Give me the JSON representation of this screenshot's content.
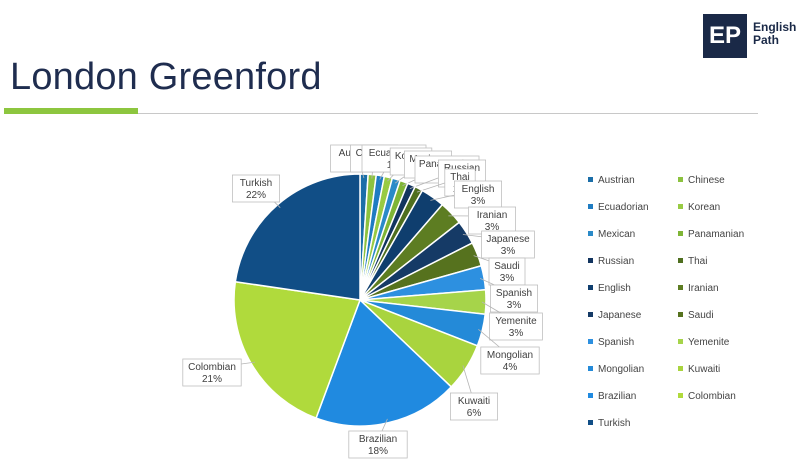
{
  "header": {
    "title": "London Greenford"
  },
  "logo": {
    "mark": "EP",
    "line1": "English",
    "line2": "Path"
  },
  "chart_data": {
    "type": "pie",
    "categories": [
      "Austrian",
      "Chinese",
      "Ecuadorian",
      "Korean",
      "Mexican",
      "Panamanian",
      "Russian",
      "Thai",
      "English",
      "Iranian",
      "Japanese",
      "Saudi",
      "Spanish",
      "Yemenite",
      "Mongolian",
      "Kuwaiti",
      "Brazilian",
      "Colombian",
      "Turkish"
    ],
    "values": [
      1,
      1,
      1,
      1,
      1,
      1,
      1,
      1,
      3,
      3,
      3,
      3,
      3,
      3,
      4,
      6,
      18,
      21,
      22
    ],
    "value_labels": [
      "1%",
      "1%",
      "1%",
      "1%",
      "1%",
      "1%",
      "1%",
      "1%",
      "3%",
      "3%",
      "3%",
      "3%",
      "3%",
      "3%",
      "4%",
      "6%",
      "18%",
      "21%",
      "22%"
    ],
    "colors": [
      "#1b6ea8",
      "#8cc23f",
      "#1f7cc2",
      "#98cb43",
      "#2a8ac8",
      "#7fb536",
      "#12345f",
      "#4f6f1f",
      "#0f3e6e",
      "#5d7d22",
      "#153a66",
      "#56721e",
      "#2d90e0",
      "#a6d44a",
      "#248ad8",
      "#a9d43e",
      "#208ae0",
      "#b0da3c",
      "#114e86"
    ],
    "legend_position": "right"
  }
}
